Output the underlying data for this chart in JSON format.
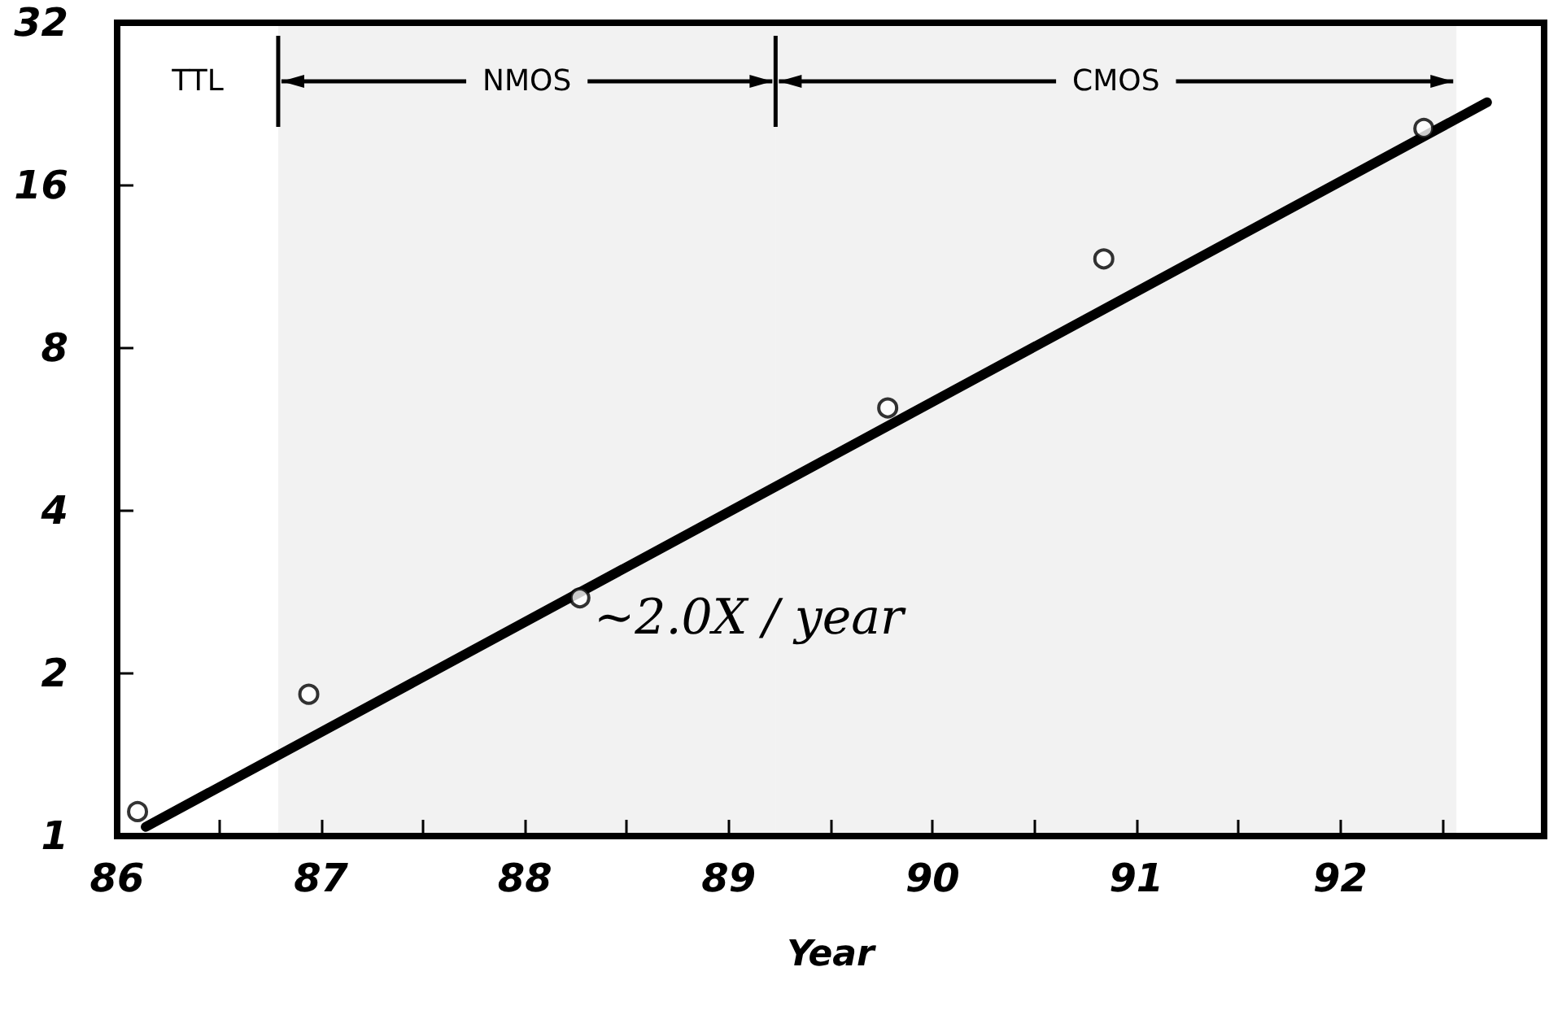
{
  "chart_data": {
    "type": "scatter",
    "xlabel": "Year",
    "series": [
      {
        "color": "#000000",
        "marker": "circle",
        "x": [
          86.1,
          86.94,
          88.27,
          89.78,
          90.84,
          92.41
        ],
        "values": [
          1.11,
          1.83,
          2.76,
          6.2,
          11.7,
          20.4
        ]
      },
      {
        "type": "line",
        "color": "#000000",
        "marker": "none",
        "line_style": "solid",
        "x": [
          86.14,
          92.72
        ],
        "values": [
          1.04,
          22.8
        ]
      }
    ],
    "log": "y",
    "xlim": [
      86,
      93
    ],
    "ylim": [
      1,
      32
    ],
    "xticks": [
      86,
      {
        "value": 86.5,
        "label": null
      },
      87,
      {
        "value": 87.5,
        "label": null
      },
      88,
      {
        "value": 88.5,
        "label": null
      },
      89,
      {
        "value": 89.5,
        "label": null
      },
      90,
      {
        "value": 90.5,
        "label": null
      },
      91,
      {
        "value": 91.5,
        "label": null
      },
      92,
      {
        "value": 92.5,
        "label": null
      }
    ],
    "yticks": [
      1,
      2,
      4,
      8,
      16,
      32
    ],
    "ref_lines": [
      {
        "axis": "x",
        "value": 86.79
      },
      {
        "axis": "x",
        "value": 89.23
      }
    ],
    "bands": [
      {
        "axis": "x",
        "from": 86.79,
        "to": 89.23,
        "label": "NMOS"
      },
      {
        "axis": "x",
        "from": 89.23,
        "to": 92.57,
        "label": "CMOS"
      }
    ],
    "annotations": [
      "TTL",
      "~2.0X / year"
    ],
    "grid": false
  }
}
